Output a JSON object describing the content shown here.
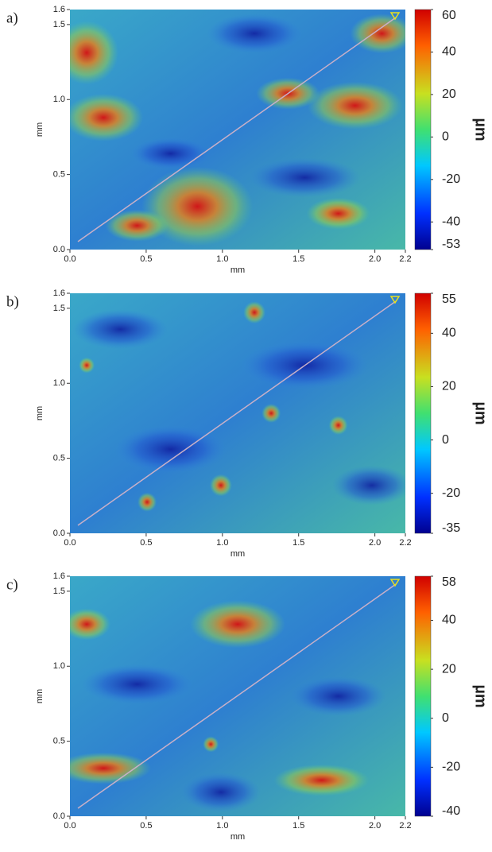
{
  "chart_data": [
    {
      "type": "heatmap",
      "panel_label": "a)",
      "xlabel": "mm",
      "ylabel": "mm",
      "colorbar_label": "µm",
      "xlim": [
        0,
        2.2
      ],
      "ylim": [
        0,
        1.6
      ],
      "xticks": [
        {
          "value": 0,
          "label": "0.0"
        },
        0.5,
        {
          "value": 1,
          "label": "1.0"
        },
        1.5,
        {
          "value": 2,
          "label": "2.0"
        },
        2.2
      ],
      "yticks": [
        {
          "value": 0,
          "label": "0.0"
        },
        0.5,
        {
          "value": 1,
          "label": "1.0"
        },
        1.5,
        1.6
      ],
      "clim": [
        -53,
        60
      ],
      "cticks": [
        60,
        40,
        20,
        0,
        -20,
        -40,
        -53
      ]
    },
    {
      "type": "heatmap",
      "panel_label": "b)",
      "xlabel": "mm",
      "ylabel": "mm",
      "colorbar_label": "µm",
      "xlim": [
        0,
        2.2
      ],
      "ylim": [
        0,
        1.6
      ],
      "xticks": [
        {
          "value": 0,
          "label": "0.0"
        },
        0.5,
        {
          "value": 1,
          "label": "1.0"
        },
        1.5,
        {
          "value": 2,
          "label": "2.0"
        },
        2.2
      ],
      "yticks": [
        {
          "value": 0,
          "label": "0.0"
        },
        0.5,
        {
          "value": 1,
          "label": "1.0"
        },
        1.5,
        1.6
      ],
      "clim": [
        -35,
        55
      ],
      "cticks": [
        55,
        40,
        20,
        0,
        -20,
        -35
      ]
    },
    {
      "type": "heatmap",
      "panel_label": "c)",
      "xlabel": "mm",
      "ylabel": "mm",
      "colorbar_label": "µm",
      "xlim": [
        0,
        2.2
      ],
      "ylim": [
        0,
        1.6
      ],
      "xticks": [
        {
          "value": 0,
          "label": "0.0"
        },
        0.5,
        {
          "value": 1,
          "label": "1.0"
        },
        1.5,
        {
          "value": 2,
          "label": "2.0"
        },
        2.2
      ],
      "yticks": [
        {
          "value": 0,
          "label": "0.0"
        },
        0.5,
        {
          "value": 1,
          "label": "1.0"
        },
        1.5,
        1.6
      ],
      "clim": [
        -40,
        58
      ],
      "cticks": [
        58,
        40,
        20,
        0,
        -20,
        -40
      ]
    }
  ]
}
